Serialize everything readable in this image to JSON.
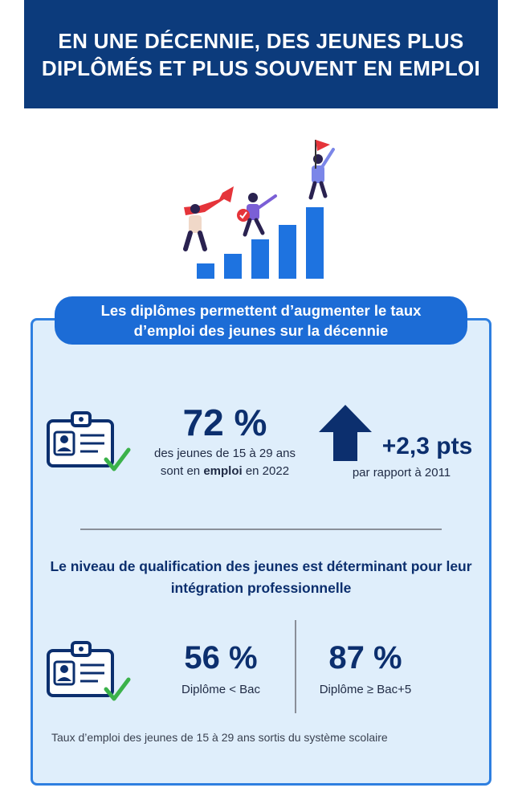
{
  "header": {
    "title": "EN UNE DÉCENNIE, DES JEUNES PLUS DIPLÔMÉS ET PLUS SOUVENT EN EMPLOI"
  },
  "illustration": {
    "icon": "growth-bar-chart-people-icon"
  },
  "panel": {
    "heading": "Les diplômes permettent d’augmenter le taux d’emploi des jeunes sur la décennie",
    "stat_main": {
      "value": "72 %",
      "desc_line1": "des jeunes de 15 à 29 ans",
      "desc_pre": "sont en",
      "desc_bold": "emploi",
      "desc_post": "en 2022"
    },
    "change": {
      "value": "+2,3 pts",
      "desc": "par rapport à 2011",
      "icon": "arrow-up-icon"
    },
    "subheading": "Le niveau de qualification des jeunes est déterminant pour leur intégration professionnelle",
    "low_qual": {
      "value": "56 %",
      "label": "Diplôme < Bac"
    },
    "high_qual": {
      "value": "87 %",
      "label": "Diplôme ≥ Bac+5"
    },
    "footnote": "Taux d’emploi des jeunes de 15 à 29 ans sortis du système scolaire"
  },
  "colors": {
    "header_bg": "#0c3b7c",
    "pill_bg": "#1c6cd6",
    "panel_bg": "#dfeefb",
    "panel_border": "#2e7fe0",
    "accent_navy": "#0c2f6e",
    "check_green": "#3bb24a"
  }
}
